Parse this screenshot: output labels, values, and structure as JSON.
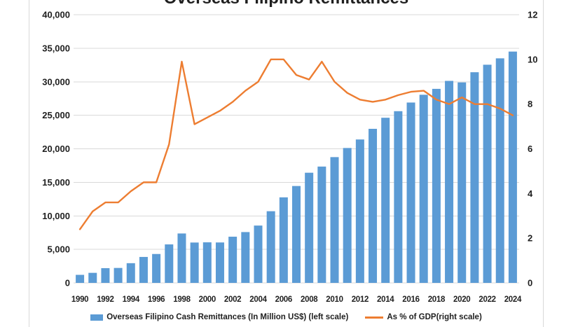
{
  "title": "Overseas Filipino Remittances",
  "legend": {
    "bars_label": "Overseas Filipino Cash Remittances (In Million US$) (left scale)",
    "line_label": "As % of GDP(right scale)"
  },
  "colors": {
    "bar": "#5b9bd5",
    "line": "#ed7d31",
    "gridline": "#d9d9d9",
    "axis_text": "#1f1f1f",
    "frame_border": "#d9d9d9",
    "background": "#ffffff"
  },
  "chart_data": {
    "type": "bar",
    "subtype": "combo-bar-line-dual-axis",
    "title": "Overseas Filipino Remittances",
    "grid": "horizontal-on",
    "legend_position": "bottom",
    "categories": [
      1990,
      1991,
      1992,
      1993,
      1994,
      1995,
      1996,
      1997,
      1998,
      1999,
      2000,
      2001,
      2002,
      2003,
      2004,
      2005,
      2006,
      2007,
      2008,
      2009,
      2010,
      2011,
      2012,
      2013,
      2014,
      2015,
      2016,
      2017,
      2018,
      2019,
      2020,
      2021,
      2022,
      2023,
      2024
    ],
    "series": [
      {
        "name": "Overseas Filipino Cash Remittances (In Million US$) (left scale)",
        "type": "bar",
        "axis": "left",
        "values": [
          1200,
          1500,
          2200,
          2230,
          2940,
          3870,
          4310,
          5740,
          7370,
          6020,
          6050,
          6030,
          6890,
          7580,
          8550,
          10690,
          12760,
          14450,
          16430,
          17350,
          18760,
          20120,
          21390,
          22980,
          24630,
          25610,
          26900,
          28060,
          28940,
          30130,
          29900,
          31420,
          32540,
          33490,
          34500
        ]
      },
      {
        "name": "As % of GDP(right scale)",
        "type": "line",
        "axis": "right",
        "values": [
          2.4,
          3.2,
          3.6,
          3.6,
          4.1,
          4.5,
          4.5,
          6.2,
          9.9,
          7.1,
          7.4,
          7.7,
          8.1,
          8.6,
          9.0,
          10.0,
          10.0,
          9.3,
          9.1,
          9.9,
          9.0,
          8.5,
          8.2,
          8.1,
          8.2,
          8.4,
          8.55,
          8.6,
          8.2,
          8.0,
          8.3,
          8.0,
          8.0,
          7.8,
          7.5
        ]
      }
    ],
    "left_axis": {
      "min": 0,
      "max": 40000,
      "tick_interval": 5000,
      "tick_labels": [
        "0",
        "5,000",
        "10,000",
        "15,000",
        "20,000",
        "25,000",
        "30,000",
        "35,000",
        "40,000"
      ]
    },
    "right_axis": {
      "min": 0,
      "max": 12,
      "tick_interval": 2,
      "tick_labels": [
        "0",
        "2",
        "4",
        "6",
        "8",
        "10",
        "12"
      ]
    },
    "x_tick_labels": [
      "1990",
      "1992",
      "1994",
      "1996",
      "1998",
      "2000",
      "2002",
      "2004",
      "2006",
      "2008",
      "2010",
      "2012",
      "2014",
      "2016",
      "2018",
      "2020",
      "2022",
      "2024"
    ]
  }
}
